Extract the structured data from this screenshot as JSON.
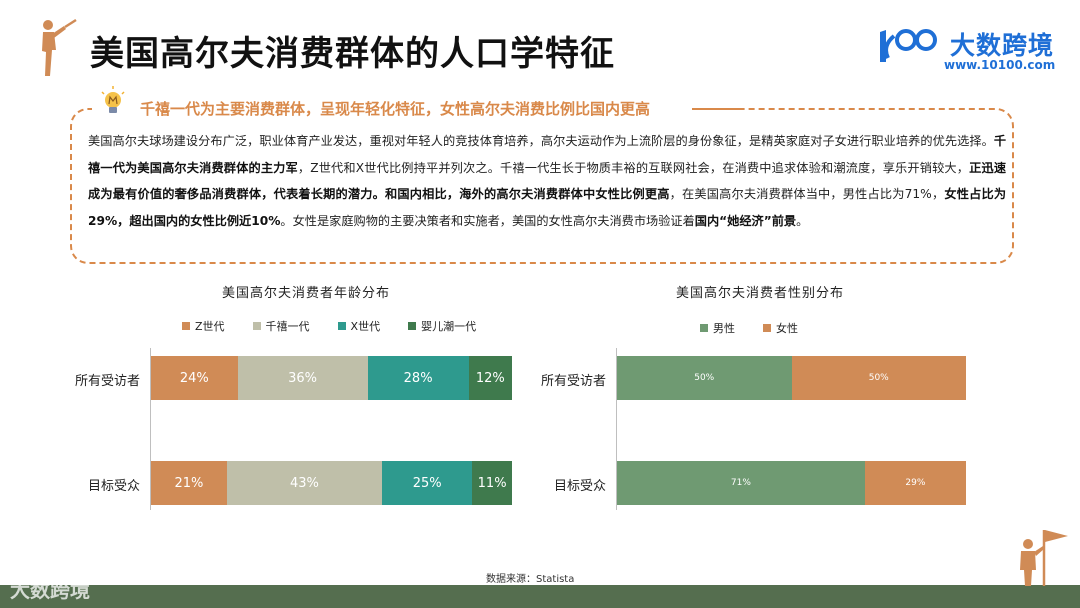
{
  "header": {
    "title": "美国高尔夫消费群体的人口学特征",
    "brand_name": "大数跨境",
    "brand_url": "www.10100.com",
    "golfer_icon": "golfer-icon",
    "brand_logo_icon": "brand-logo-icon"
  },
  "summary": {
    "headline": "千禧一代为主要消费群体，呈现年轻化特征，女性高尔夫消费比例比国内更高",
    "bulb_icon": "lightbulb-icon",
    "segments": [
      {
        "text": "美国高尔夫球场建设分布广泛，职业体育产业发达，重视对年轻人的竞技体育培养，高尔夫运动作为上流阶层的身份象征，是精英家庭对子女进行职业培养的优先选择。",
        "bold": false
      },
      {
        "text": "千禧一代为美国高尔夫消费群体的主力军",
        "bold": true
      },
      {
        "text": "，Z世代和X世代比例持平并列次之。千禧一代生长于物质丰裕的互联网社会，在消费中追求体验和潮流度，享乐开销较大，",
        "bold": false
      },
      {
        "text": "正迅速成为最有价值的奢侈品消费群体，代表着长期的潜力。和国内相比，海外的高尔夫消费群体中女性比例更高",
        "bold": true
      },
      {
        "text": "，在美国高尔夫消费群体当中，男性占比为71%，",
        "bold": false
      },
      {
        "text": "女性占比为29%，超出国内的女性比例近10%",
        "bold": true
      },
      {
        "text": "。女性是家庭购物的主要决策者和实施者，美国的女性高尔夫消费市场验证着",
        "bold": false
      },
      {
        "text": "国内“她经济”前景",
        "bold": true
      },
      {
        "text": "。",
        "bold": false
      }
    ]
  },
  "chart_data": [
    {
      "type": "bar",
      "orientation": "horizontal-stacked-100",
      "title": "美国高尔夫消费者年龄分布",
      "categories": [
        "所有受访者",
        "目标受众"
      ],
      "series": [
        {
          "name": "Z世代",
          "values": [
            24,
            21
          ],
          "color": "#d08b56"
        },
        {
          "name": "千禧一代",
          "values": [
            36,
            43
          ],
          "color": "#bfbfa9"
        },
        {
          "name": "X世代",
          "values": [
            28,
            25
          ],
          "color": "#2e9a8e"
        },
        {
          "name": "婴儿潮一代",
          "values": [
            12,
            11
          ],
          "color": "#3f7a4d"
        }
      ],
      "value_suffix": "%",
      "xlim": [
        0,
        100
      ],
      "legend": "top",
      "grid": false
    },
    {
      "type": "bar",
      "orientation": "horizontal-stacked-100",
      "title": "美国高尔夫消费者性别分布",
      "categories": [
        "所有受访者",
        "目标受众"
      ],
      "series": [
        {
          "name": "男性",
          "values": [
            50,
            71
          ],
          "color": "#6f9a72"
        },
        {
          "name": "女性",
          "values": [
            50,
            29
          ],
          "color": "#d08b56"
        }
      ],
      "value_suffix": "%",
      "xlim": [
        0,
        100
      ],
      "legend": "top",
      "grid": false
    }
  ],
  "footer": {
    "source": "数据来源：Statista",
    "watermark": "大数跨境",
    "flag_icon": "golfer-with-flag-icon"
  }
}
